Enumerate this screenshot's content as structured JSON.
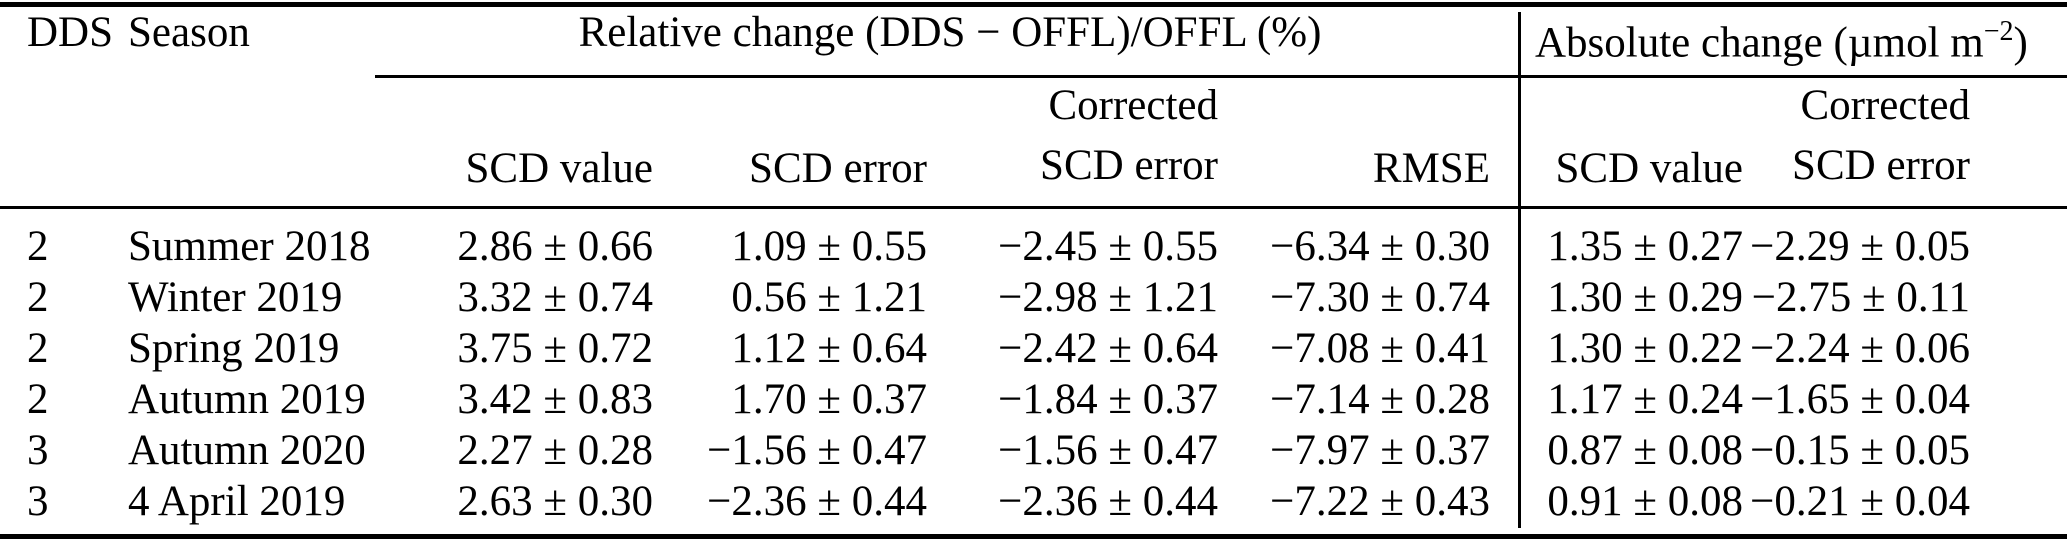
{
  "header": {
    "dds": "DDS",
    "season": "Season",
    "relative_group": "Relative change (DDS − OFFL)/OFFL (%)",
    "absolute_group": {
      "text": "Absolute change (µmol m",
      "sup": "−2",
      "suffix": ")"
    },
    "sub": {
      "scd_value": "SCD value",
      "scd_error": "SCD error",
      "corrected": "Corrected",
      "corrected_scd_error": "SCD error",
      "rmse": "RMSE"
    }
  },
  "rows": [
    {
      "dds": "2",
      "season": "Summer 2018",
      "rel_scd_value": "2.86 ± 0.66",
      "rel_scd_error": "1.09 ± 0.55",
      "rel_corr_scd_error": "−2.45 ± 0.55",
      "rmse": "−6.34 ± 0.30",
      "abs_scd_value": "1.35 ± 0.27",
      "abs_corr_scd_error": "−2.29 ± 0.05"
    },
    {
      "dds": "2",
      "season": "Winter 2019",
      "rel_scd_value": "3.32 ± 0.74",
      "rel_scd_error": "0.56 ± 1.21",
      "rel_corr_scd_error": "−2.98 ± 1.21",
      "rmse": "−7.30 ± 0.74",
      "abs_scd_value": "1.30 ± 0.29",
      "abs_corr_scd_error": "−2.75 ± 0.11"
    },
    {
      "dds": "2",
      "season": "Spring 2019",
      "rel_scd_value": "3.75 ± 0.72",
      "rel_scd_error": "1.12 ± 0.64",
      "rel_corr_scd_error": "−2.42 ± 0.64",
      "rmse": "−7.08 ± 0.41",
      "abs_scd_value": "1.30 ± 0.22",
      "abs_corr_scd_error": "−2.24 ± 0.06"
    },
    {
      "dds": "2",
      "season": "Autumn 2019",
      "rel_scd_value": "3.42 ± 0.83",
      "rel_scd_error": "1.70 ± 0.37",
      "rel_corr_scd_error": "−1.84 ± 0.37",
      "rmse": "−7.14 ± 0.28",
      "abs_scd_value": "1.17 ± 0.24",
      "abs_corr_scd_error": "−1.65 ± 0.04"
    },
    {
      "dds": "3",
      "season": "Autumn 2020",
      "rel_scd_value": "2.27 ± 0.28",
      "rel_scd_error": "−1.56 ± 0.47",
      "rel_corr_scd_error": "−1.56 ± 0.47",
      "rmse": "−7.97 ± 0.37",
      "abs_scd_value": "0.87 ± 0.08",
      "abs_corr_scd_error": "−0.15 ± 0.05"
    },
    {
      "dds": "3",
      "season": "4 April 2019",
      "rel_scd_value": "2.63 ± 0.30",
      "rel_scd_error": "−2.36 ± 0.44",
      "rel_corr_scd_error": "−2.36 ± 0.44",
      "rmse": "−7.22 ± 0.43",
      "abs_scd_value": "0.91 ± 0.08",
      "abs_corr_scd_error": "−0.21 ± 0.04"
    }
  ]
}
